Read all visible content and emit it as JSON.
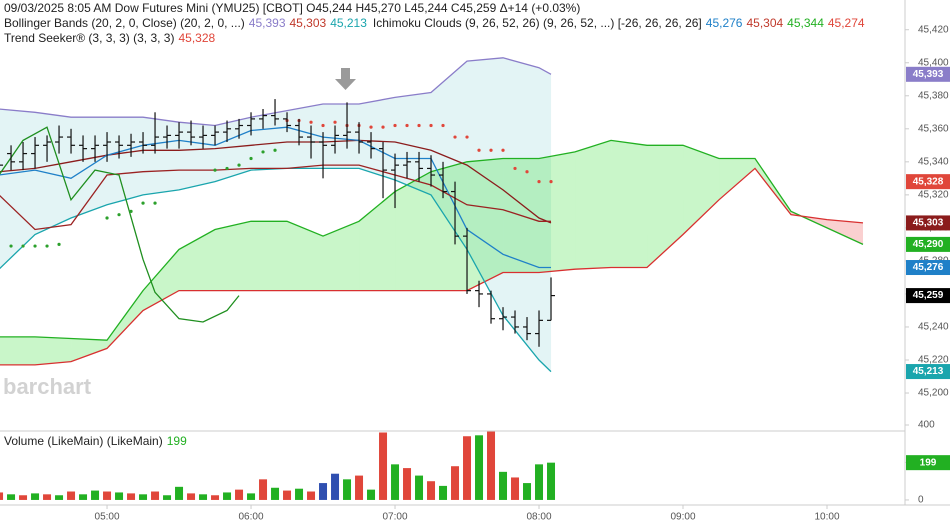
{
  "chart_data": {
    "type": "ohlc",
    "title": "09/03/2025  8:05 AM Dow Futures Mini (YMU25) [CBOT] O45,244 H45,270 L45,244 C45,259 Δ+14 (+0.03%)",
    "watermark": "barchart",
    "color": "#111111",
    "xlim": [
      255.4,
      632.5
    ],
    "xticks": [
      {
        "value": 300,
        "label": "05:00"
      },
      {
        "value": 360,
        "label": "06:00"
      },
      {
        "value": 420,
        "label": "07:00"
      },
      {
        "value": 480,
        "label": "08:00"
      },
      {
        "value": 540,
        "label": "09:00"
      },
      {
        "value": 600,
        "label": "10:00"
      }
    ],
    "ylim": [
      45177,
      45438
    ],
    "yticks": [
      {
        "value": 45200,
        "label": "45,200"
      },
      {
        "value": 45220,
        "label": "45,220"
      },
      {
        "value": 45240,
        "label": "45,240"
      },
      {
        "value": 45260,
        "label": "45,260"
      },
      {
        "value": 45280,
        "label": "45,280"
      },
      {
        "value": 45300,
        "label": "45,300"
      },
      {
        "value": 45320,
        "label": "45,320"
      },
      {
        "value": 45340,
        "label": "45,340"
      },
      {
        "value": 45360,
        "label": "45,360"
      },
      {
        "value": 45380,
        "label": "45,380"
      },
      {
        "value": 45400,
        "label": "45,400"
      },
      {
        "value": 45420,
        "label": "45,420"
      }
    ],
    "grid": false,
    "x": [
      255,
      260,
      265,
      270,
      275,
      280,
      285,
      290,
      295,
      300,
      305,
      310,
      315,
      320,
      325,
      330,
      335,
      340,
      345,
      350,
      355,
      360,
      365,
      370,
      375,
      380,
      385,
      390,
      395,
      400,
      405,
      410,
      415,
      420,
      425,
      430,
      435,
      440,
      445,
      450,
      455,
      460,
      465,
      470,
      475,
      480,
      485
    ],
    "open": [
      45340,
      45345,
      45340,
      45345,
      45350,
      45352,
      45355,
      45350,
      45348,
      45350,
      45352,
      45350,
      45352,
      45350,
      45355,
      45356,
      45358,
      45355,
      45356,
      45358,
      45360,
      45362,
      45366,
      45368,
      45366,
      45362,
      45355,
      45352,
      45350,
      45356,
      45358,
      45352,
      45348,
      45335,
      45338,
      45340,
      45336,
      45332,
      45322,
      45295,
      45262,
      45260,
      45245,
      45246,
      45240,
      45236,
      45244
    ],
    "high": [
      45347,
      45350,
      45352,
      45355,
      45356,
      45362,
      45360,
      45356,
      45356,
      45358,
      45356,
      45357,
      45358,
      45370,
      45362,
      45364,
      45365,
      45362,
      45362,
      45365,
      45366,
      45370,
      45372,
      45378,
      45370,
      45366,
      45362,
      45358,
      45362,
      45376,
      45364,
      45358,
      45352,
      45345,
      45346,
      45346,
      45344,
      45340,
      45328,
      45300,
      45268,
      45262,
      45252,
      45250,
      45246,
      45250,
      45270
    ],
    "low": [
      45332,
      45335,
      45335,
      45336,
      45340,
      45345,
      45345,
      45340,
      45340,
      45340,
      45342,
      45343,
      45345,
      45345,
      45348,
      45348,
      45350,
      45348,
      45350,
      45352,
      45354,
      45356,
      45360,
      45362,
      45358,
      45350,
      45342,
      45330,
      45345,
      45348,
      45345,
      45342,
      45318,
      45312,
      45330,
      45328,
      45325,
      45318,
      45290,
      45260,
      45252,
      45242,
      45238,
      45236,
      45232,
      45228,
      45244
    ],
    "close": [
      45338,
      45340,
      45345,
      45350,
      45352,
      45355,
      45350,
      45348,
      45350,
      45352,
      45350,
      45352,
      45350,
      45355,
      45356,
      45358,
      45355,
      45356,
      45358,
      45360,
      45362,
      45366,
      45368,
      45366,
      45362,
      45355,
      45352,
      45350,
      45356,
      45358,
      45352,
      45348,
      45335,
      45338,
      45340,
      45336,
      45332,
      45322,
      45295,
      45262,
      45260,
      45245,
      45246,
      45240,
      45236,
      45244,
      45259
    ],
    "bands": {
      "label": "Bollinger Bands (20, 2, 0, Close)  (20, 2, 0, ...)",
      "readouts": [
        {
          "value": 45393,
          "label": "45,393",
          "color": "#8a7dc9"
        },
        {
          "value": 45303,
          "label": "45,303",
          "color": "#c0392b"
        },
        {
          "value": 45213,
          "label": "45,213",
          "color": "#1aa5ad"
        }
      ],
      "fill": "rgba(26,165,173,0.12)",
      "x": [
        255,
        270,
        285,
        300,
        315,
        330,
        345,
        360,
        375,
        390,
        405,
        420,
        435,
        450,
        465,
        480,
        485
      ],
      "upper": {
        "color": "#8a7dc9",
        "values": [
          45372,
          45370,
          45367,
          45367,
          45367,
          45364,
          45362,
          45367,
          45371,
          45375,
          45375,
          45379,
          45382,
          45401,
          45403,
          45397,
          45393
        ]
      },
      "middle": {
        "color": "#8b1c1c",
        "values": [
          45334,
          45336,
          45340,
          45344,
          45347,
          45347,
          45348,
          45350,
          45352,
          45352,
          45353,
          45352,
          45347,
          45338,
          45323,
          45306,
          45303
        ]
      },
      "lower": {
        "color": "#1aa5ad",
        "values": [
          45275,
          45296,
          45306,
          45314,
          45320,
          45323,
          45328,
          45335,
          45336,
          45336,
          45336,
          45329,
          45320,
          45287,
          45247,
          45220,
          45213
        ]
      }
    },
    "cloud": {
      "label": "Ichimoku Clouds (9, 26, 52, 26)  (9, 26, 52, ...) [-26, 26, 26, 26]",
      "readouts": [
        {
          "value": 45276,
          "label": "45,276",
          "color": "#1f80c8"
        },
        {
          "value": 45304,
          "label": "45,304",
          "color": "#c0392b"
        },
        {
          "value": 45344,
          "label": "45,344",
          "color": "#22b022"
        },
        {
          "value": 45274,
          "label": "45,274",
          "color": "#e0463a"
        }
      ],
      "up_fill": "rgba(40,220,40,0.25)",
      "down_fill": "rgba(230,40,40,0.22)",
      "x": [
        255,
        270,
        285,
        300,
        315,
        330,
        345,
        360,
        375,
        390,
        405,
        420,
        435,
        450,
        465,
        480,
        495,
        510,
        525,
        540,
        555,
        570,
        585,
        600,
        615
      ],
      "span_a": {
        "color": "#22b022",
        "values": [
          45234,
          45234,
          45233,
          45232,
          45262,
          45287,
          45299,
          45304,
          45304,
          45295,
          45304,
          45322,
          45334,
          45340,
          45342,
          45342,
          45346,
          45353,
          45350,
          45350,
          45342,
          45342,
          45310,
          45300,
          45290
        ]
      },
      "span_b": {
        "color": "#d83030",
        "values": [
          45217,
          45217,
          45219,
          45227,
          45250,
          45262,
          45262,
          45262,
          45262,
          45262,
          45262,
          45262,
          45262,
          45262,
          45273,
          45273,
          45275,
          45276,
          45276,
          45296,
          45317,
          45336,
          45308,
          45305,
          45303
        ]
      },
      "lines": [
        {
          "color": "#1f80c8",
          "x": [
            255,
            270,
            285,
            300,
            315,
            330,
            345,
            360,
            375,
            390,
            405,
            420,
            435,
            450,
            465,
            480,
            485
          ],
          "values": [
            45332,
            45335,
            45330,
            45344,
            45350,
            45353,
            45350,
            45359,
            45361,
            45355,
            45353,
            45342,
            45342,
            45299,
            45284,
            45276,
            45276
          ]
        },
        {
          "color": "#9b2222",
          "x": [
            255,
            270,
            285,
            300,
            315,
            330,
            345,
            360,
            375,
            390,
            405,
            420,
            435,
            450,
            465,
            480,
            485
          ],
          "values": [
            45320,
            45299,
            45302,
            45332,
            45334,
            45335,
            45335,
            45336,
            45336,
            45338,
            45338,
            45332,
            45326,
            45314,
            45311,
            45304,
            45304
          ]
        },
        {
          "color": "#1f8f1f",
          "x": [
            255,
            265,
            275,
            285,
            295,
            305,
            315,
            320,
            330,
            340,
            350,
            355
          ],
          "values": [
            45332,
            45353,
            45361,
            45317,
            45335,
            45332,
            45281,
            45261,
            45245,
            45243,
            45250,
            45259
          ]
        }
      ]
    },
    "trend": {
      "label": "Trend Seeker® (3, 3, 3)  (3, 3, 3)",
      "readouts": [
        {
          "value": 45328,
          "label": "45,328",
          "color": "#e0463a"
        }
      ],
      "dots": [
        {
          "color": "#2ca02c",
          "x": [
            260,
            265,
            270,
            275,
            280,
            300,
            305,
            310,
            315,
            320,
            345,
            350,
            355,
            360,
            365,
            370
          ],
          "values": [
            45289,
            45289,
            45289,
            45289,
            45290,
            45306,
            45308,
            45310,
            45315,
            45315,
            45335,
            45336,
            45338,
            45342,
            45346,
            45347
          ]
        },
        {
          "color": "#e0463a",
          "x": [
            375,
            380,
            385,
            390,
            395,
            400,
            405,
            410,
            415,
            420,
            425,
            430,
            435,
            440,
            445,
            450,
            455,
            460,
            465,
            470,
            475,
            480,
            485
          ],
          "values": [
            45365,
            45365,
            45364,
            45362,
            45364,
            45362,
            45362,
            45361,
            45361,
            45362,
            45362,
            45362,
            45362,
            45362,
            45355,
            45355,
            45347,
            45347,
            45347,
            45336,
            45334,
            45328,
            45328
          ]
        }
      ]
    },
    "badges": [
      {
        "value": 45393,
        "label": "45,393",
        "color": "#8a7dc9"
      },
      {
        "value": 45328,
        "label": "45,328",
        "color": "#e0463a"
      },
      {
        "value": 45303,
        "label": "45,303",
        "color": "#8b1c1c"
      },
      {
        "value": 45290,
        "label": "45,290",
        "color": "#22b022"
      },
      {
        "value": 45276,
        "label": "45,276",
        "color": "#1f80c8"
      },
      {
        "value": 45259,
        "label": "45,259",
        "color": "#000000"
      },
      {
        "value": 45213,
        "label": "45,213",
        "color": "#1aa5ad"
      }
    ],
    "volume": {
      "label": "Volume (LikeMain)  (LikeMain)",
      "readouts": [
        {
          "value": 199,
          "label": "199",
          "color": "#22b022"
        }
      ],
      "ylim": [
        -27,
        400
      ],
      "yticks": [
        0,
        200,
        400
      ],
      "values": [
        40,
        30,
        25,
        35,
        30,
        25,
        45,
        30,
        50,
        45,
        40,
        35,
        30,
        45,
        25,
        70,
        35,
        30,
        25,
        40,
        55,
        35,
        110,
        65,
        50,
        60,
        45,
        90,
        140,
        110,
        130,
        55,
        360,
        190,
        170,
        130,
        100,
        75,
        180,
        340,
        345,
        365,
        150,
        120,
        90,
        190,
        199
      ],
      "colors": [
        "#e0463a",
        "#22b022",
        "#e0463a",
        "#22b022",
        "#e0463a",
        "#22b022",
        "#e0463a",
        "#22b022",
        "#22b022",
        "#e0463a",
        "#22b022",
        "#e0463a",
        "#22b022",
        "#e0463a",
        "#22b022",
        "#22b022",
        "#e0463a",
        "#22b022",
        "#e0463a",
        "#22b022",
        "#e0463a",
        "#22b022",
        "#e0463a",
        "#22b022",
        "#e0463a",
        "#22b022",
        "#e0463a",
        "#2f4fb0",
        "#2f4fb0",
        "#22b022",
        "#e0463a",
        "#22b022",
        "#e0463a",
        "#22b022",
        "#e0463a",
        "#22b022",
        "#e0463a",
        "#22b022",
        "#e0463a",
        "#e0463a",
        "#22b022",
        "#e0463a",
        "#22b022",
        "#e0463a",
        "#22b022",
        "#22b022",
        "#22b022"
      ],
      "badges": [
        {
          "value": 199,
          "label": "199",
          "color": "#22b022"
        }
      ]
    }
  }
}
